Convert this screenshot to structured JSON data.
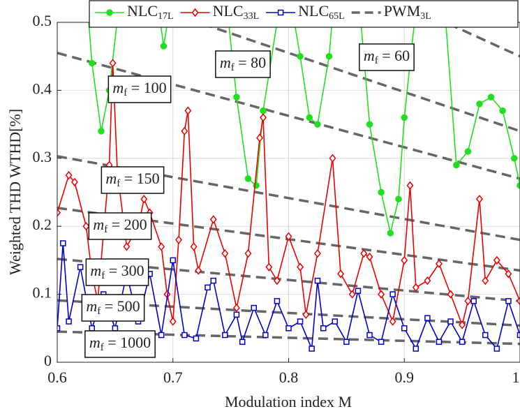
{
  "chart_data": {
    "type": "line",
    "xlabel": "Modulation index M",
    "ylabel": "Weighted THD WTHD[%]",
    "xlim": [
      0.6,
      1.0
    ],
    "ylim": [
      0,
      0.5
    ],
    "xticks": [
      0.6,
      0.7,
      0.8,
      0.9,
      1
    ],
    "yticks": [
      0,
      0.1,
      0.2,
      0.3,
      0.4,
      0.5
    ],
    "grid": true,
    "legend": "top",
    "series": [
      {
        "name": "NLC",
        "name_sub": "17L",
        "color": "#1fe01f",
        "marker": "circle",
        "x": [
          0.625,
          0.63,
          0.638,
          0.645,
          0.655,
          0.685,
          0.692,
          0.7,
          0.745,
          0.755,
          0.765,
          0.772,
          0.778,
          0.79,
          0.8,
          0.81,
          0.818,
          0.825,
          0.835,
          0.84,
          0.86,
          0.87,
          0.88,
          0.888,
          0.895,
          0.9,
          0.91,
          0.935,
          0.945,
          0.955,
          0.965,
          0.975,
          0.985,
          0.995,
          1.0
        ],
        "values": [
          0.55,
          0.44,
          0.34,
          0.4,
          0.55,
          0.55,
          0.465,
          0.55,
          0.55,
          0.39,
          0.27,
          0.26,
          0.37,
          0.5,
          0.55,
          0.45,
          0.36,
          0.35,
          0.45,
          0.55,
          0.55,
          0.35,
          0.25,
          0.19,
          0.24,
          0.36,
          0.52,
          0.52,
          0.29,
          0.31,
          0.38,
          0.39,
          0.37,
          0.3,
          0.26
        ]
      },
      {
        "name": "NLC",
        "name_sub": "33L",
        "color": "#ee0000",
        "marker": "diamond",
        "x": [
          0.6,
          0.61,
          0.615,
          0.625,
          0.63,
          0.635,
          0.64,
          0.645,
          0.648,
          0.652,
          0.66,
          0.67,
          0.675,
          0.68,
          0.69,
          0.695,
          0.7,
          0.705,
          0.71,
          0.713,
          0.718,
          0.722,
          0.735,
          0.745,
          0.755,
          0.765,
          0.775,
          0.778,
          0.783,
          0.79,
          0.8,
          0.81,
          0.815,
          0.825,
          0.838,
          0.845,
          0.855,
          0.865,
          0.87,
          0.88,
          0.89,
          0.9,
          0.905,
          0.91,
          0.92,
          0.93,
          0.94,
          0.95,
          0.955,
          0.965,
          0.97,
          0.98,
          0.99,
          1.0
        ],
        "values": [
          0.22,
          0.275,
          0.265,
          0.2,
          0.13,
          0.09,
          0.19,
          0.29,
          0.44,
          0.28,
          0.17,
          0.2,
          0.24,
          0.22,
          0.17,
          0.1,
          0.06,
          0.18,
          0.34,
          0.37,
          0.17,
          0.135,
          0.21,
          0.16,
          0.08,
          0.16,
          0.33,
          0.36,
          0.14,
          0.12,
          0.185,
          0.14,
          0.07,
          0.16,
          0.3,
          0.13,
          0.1,
          0.16,
          0.155,
          0.1,
          0.06,
          0.15,
          0.26,
          0.11,
          0.12,
          0.145,
          0.1,
          0.055,
          0.09,
          0.24,
          0.12,
          0.15,
          0.13,
          0.09
        ]
      },
      {
        "name": "NLC",
        "name_sub": "65L",
        "color": "#0000cc",
        "marker": "square",
        "x": [
          0.6,
          0.605,
          0.61,
          0.62,
          0.63,
          0.64,
          0.65,
          0.66,
          0.67,
          0.68,
          0.69,
          0.7,
          0.71,
          0.72,
          0.73,
          0.735,
          0.745,
          0.755,
          0.76,
          0.77,
          0.78,
          0.79,
          0.8,
          0.81,
          0.82,
          0.825,
          0.83,
          0.84,
          0.85,
          0.86,
          0.87,
          0.88,
          0.89,
          0.9,
          0.91,
          0.92,
          0.93,
          0.94,
          0.95,
          0.96,
          0.97,
          0.98,
          0.99,
          1.0
        ],
        "values": [
          0.05,
          0.175,
          0.06,
          0.14,
          0.05,
          0.1,
          0.05,
          0.13,
          0.06,
          0.13,
          0.04,
          0.15,
          0.04,
          0.035,
          0.11,
          0.12,
          0.04,
          0.07,
          0.03,
          0.08,
          0.04,
          0.09,
          0.05,
          0.06,
          0.02,
          0.12,
          0.05,
          0.06,
          0.03,
          0.105,
          0.04,
          0.03,
          0.1,
          0.05,
          0.02,
          0.065,
          0.03,
          0.06,
          0.03,
          0.09,
          0.04,
          0.02,
          0.09,
          0.04
        ]
      },
      {
        "name": "PWM",
        "name_sub": "3L",
        "color": "#666666",
        "marker": "none",
        "dashed": true,
        "x": [],
        "values": []
      }
    ],
    "pwm_lines": [
      {
        "x": [
          0.6,
          1.0
        ],
        "values": [
          0.76,
          0.45
        ],
        "symbol": "m",
        "sub": "f",
        "text": " = 60"
      },
      {
        "x": [
          0.6,
          1.0
        ],
        "values": [
          0.57,
          0.34
        ],
        "symbol": "m",
        "sub": "f",
        "text": " = 80"
      },
      {
        "x": [
          0.6,
          1.0
        ],
        "values": [
          0.455,
          0.27
        ],
        "symbol": "m",
        "sub": "f",
        "text": " = 100"
      },
      {
        "x": [
          0.6,
          1.0
        ],
        "values": [
          0.303,
          0.18
        ],
        "symbol": "m",
        "sub": "f",
        "text": " = 150"
      },
      {
        "x": [
          0.6,
          1.0
        ],
        "values": [
          0.227,
          0.135
        ],
        "symbol": "m",
        "sub": "f",
        "text": " = 200"
      },
      {
        "x": [
          0.6,
          1.0
        ],
        "values": [
          0.152,
          0.09
        ],
        "symbol": "m",
        "sub": "f",
        "text": " = 300"
      },
      {
        "x": [
          0.6,
          1.0
        ],
        "values": [
          0.091,
          0.054
        ],
        "symbol": "m",
        "sub": "f",
        "text": " = 500"
      },
      {
        "x": [
          0.6,
          1.0
        ],
        "values": [
          0.045,
          0.027
        ],
        "symbol": "m",
        "sub": "f",
        "text": " = 1000"
      }
    ]
  }
}
